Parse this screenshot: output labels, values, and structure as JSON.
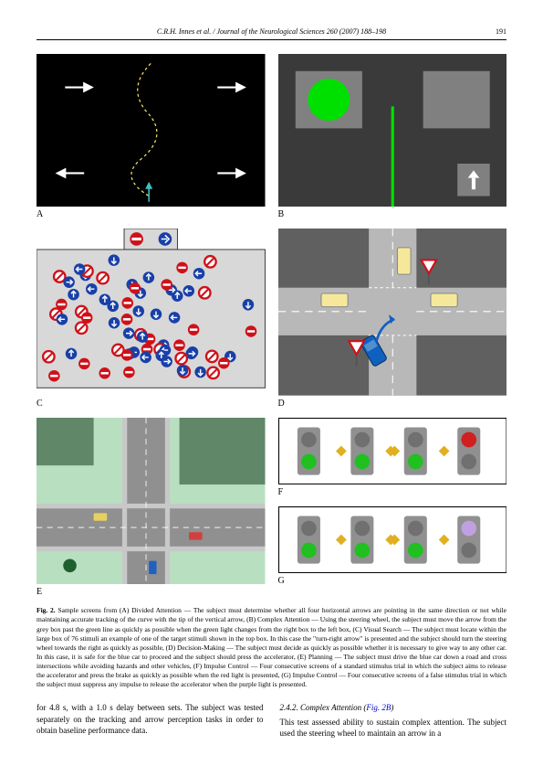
{
  "header": {
    "citation": "C.R.H. Innes et al. / Journal of the Neurological Sciences 260 (2007) 188–198",
    "page": "191"
  },
  "panels": {
    "A": {
      "label": "A",
      "bg": "#000000",
      "arrow_color": "#ffffff",
      "curve_color": "#f0e060"
    },
    "B": {
      "label": "B",
      "bg": "#3a3a3a",
      "box_bg": "#808080",
      "circle": "#00e000",
      "line": "#00e000",
      "arrow_box": "#808080",
      "arrow": "#ffffff"
    },
    "C": {
      "label": "C",
      "bg": "#d8d8d8",
      "border": "#444444",
      "sign_red": "#d01018",
      "sign_blue": "#1840a8",
      "sign_white": "#ffffff"
    },
    "D": {
      "label": "D",
      "bg": "#606060",
      "road": "#b8b8b8",
      "grass": "#7a7a7a",
      "car_blue": "#1060c0",
      "car_yellow": "#f5e89a",
      "sign_white": "#ffffff",
      "sign_red": "#d01018"
    },
    "E": {
      "label": "E",
      "bg": "#b8e0c0",
      "road": "#909090",
      "dark_green": "#608868"
    },
    "F": {
      "label": "F",
      "bg": "#ffffff",
      "light_body": "#909090",
      "light_off": "#707070",
      "green": "#20c020",
      "amber": "#e0b020",
      "red": "#d02020"
    },
    "G": {
      "label": "G",
      "bg": "#ffffff",
      "light_body": "#909090",
      "light_off": "#707070",
      "green": "#20c020",
      "amber": "#e0b020",
      "purple": "#c0a0e0"
    }
  },
  "caption": {
    "lead": "Fig. 2.",
    "text": "Sample screens from (A) Divided Attention — The subject must determine whether all four horizontal arrows are pointing in the same direction or not while maintaining accurate tracking of the curve with the tip of the vertical arrow, (B) Complex Attention — Using the steering wheel, the subject must move the arrow from the grey box past the green line as quickly as possible when the green light changes from the right box to the left box, (C) Visual Search — The subject must locate within the large box of 76 stimuli an example of one of the target stimuli shown in the top box. In this case the \"turn-right arrow\" is presented and the subject should turn the steering wheel towards the right as quickly as possible, (D) Decision-Making — The subject must decide as quickly as possible whether it is necessary to give way to any other car. In this case, it is safe for the blue car to proceed and the subject should press the accelerator, (E) Planning — The subject must drive the blue car down a road and cross intersections while avoiding hazards and other vehicles, (F) Impulse Control — Four consecutive screens of a standard stimulus trial in which the subject aims to release the accelerator and press the brake as quickly as possible when the red light is presented, (G) Impulse Control — Four consecutive screens of a false stimulus trial in which the subject must suppress any impulse to release the accelerator when the purple light is presented."
  },
  "body": {
    "left": "for 4.8 s, with a 1.0 s delay between sets. The subject was tested separately on the tracking and arrow perception tasks in order to obtain baseline performance data.",
    "right_head": "2.4.2. Complex Attention (Fig. 2B)",
    "right_head_plain": "2.4.2. Complex Attention (",
    "right_head_link": "Fig. 2B",
    "right_head_close": ")",
    "right": "This test assessed ability to sustain complex attention. The subject used the steering wheel to maintain an arrow in a"
  }
}
